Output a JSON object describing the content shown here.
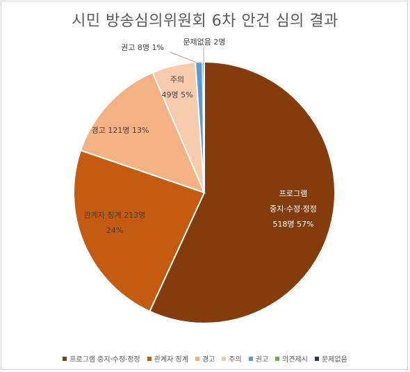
{
  "chart_data": {
    "type": "pie",
    "title": "시민 방송심의위원회 6차 안건 심의 결과",
    "categories": [
      "프로그램 중지·수정·정정",
      "관계자 징계",
      "경고",
      "주의",
      "권고",
      "의견제시",
      "문제없음"
    ],
    "values": [
      518,
      213,
      121,
      49,
      8,
      0,
      2
    ],
    "percents": [
      "57%",
      "24%",
      "13%",
      "5%",
      "1%",
      "",
      ""
    ],
    "colors": [
      "#843C0C",
      "#C55A11",
      "#F4B183",
      "#F8CBAD",
      "#5B9BD5",
      "#70AD47",
      "#1F3864"
    ],
    "data_labels": [
      [
        "프로그램",
        "중지·수정·정정",
        "518명 57%"
      ],
      [
        "관계자 징계 213명",
        "24%"
      ],
      [
        "경고 121명 13%"
      ],
      [
        "주의",
        "49명 5%"
      ],
      [
        "권고 8명 1%"
      ],
      [],
      [
        "문제없음 2명"
      ]
    ],
    "legend_position": "bottom"
  }
}
